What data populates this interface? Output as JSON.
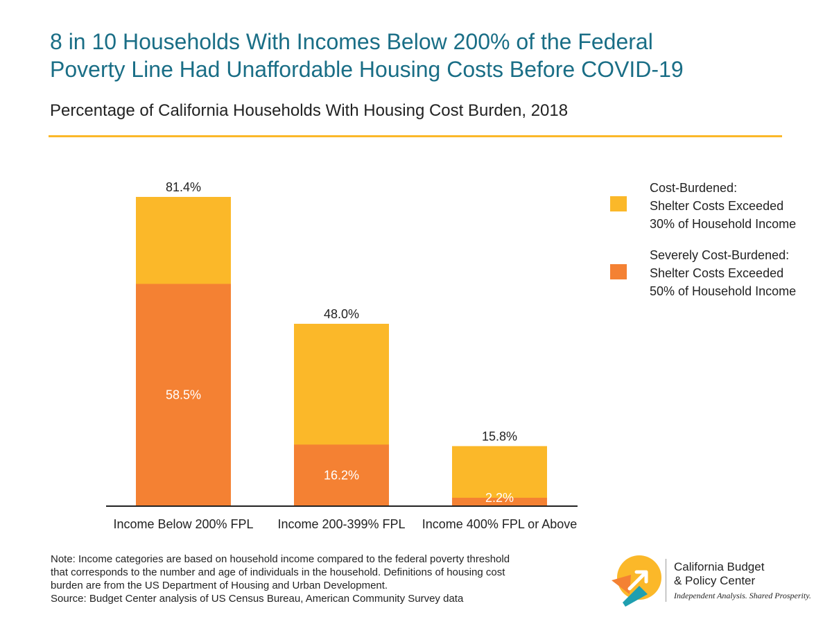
{
  "title_lines": [
    "8 in 10 Households With Incomes Below 200% of the Federal",
    "Poverty Line Had Unaffordable Housing Costs Before COVID-19"
  ],
  "subtitle": "Percentage of California Households With Housing Cost Burden, 2018",
  "colors": {
    "title": "#1a6e86",
    "cost_burdened": "#fbb829",
    "severely_cost_burdened": "#f48133",
    "rule": "#fbb829"
  },
  "chart_data": {
    "type": "bar",
    "stacked": true,
    "title": "8 in 10 Households With Incomes Below 200% of the Federal Poverty Line Had Unaffordable Housing Costs Before COVID-19",
    "subtitle": "Percentage of California Households With Housing Cost Burden, 2018",
    "categories": [
      "Income Below 200% FPL",
      "Income 200-399% FPL",
      "Income 400% FPL or Above"
    ],
    "totals": [
      81.4,
      48.0,
      15.8
    ],
    "total_labels": [
      "81.4%",
      "48.0%",
      "15.8%"
    ],
    "series": [
      {
        "name": "Severely Cost-Burdened: Shelter Costs Exceeded 50% of Household Income",
        "values": [
          58.5,
          16.2,
          2.2
        ],
        "labels": [
          "58.5%",
          "16.2%",
          "2.2%"
        ],
        "color": "#f48133"
      },
      {
        "name": "Cost-Burdened: Shelter Costs Exceeded 30% of Household Income",
        "values": [
          22.9,
          31.8,
          13.6
        ],
        "color": "#fbb829"
      }
    ],
    "ylim": [
      0,
      81.4
    ],
    "grid": false,
    "legend_position": "right"
  },
  "legend": [
    {
      "lines": [
        "Cost-Burdened:",
        "Shelter Costs Exceeded",
        "30% of Household Income"
      ],
      "color": "#fbb829",
      "icon": "orange-yellow-square"
    },
    {
      "lines": [
        "Severely Cost-Burdened:",
        "Shelter Costs Exceeded",
        "50% of Household Income"
      ],
      "color": "#f48133",
      "icon": "orange-square"
    }
  ],
  "note_lines": [
    "Note: Income categories are based on household income compared to the federal poverty threshold",
    "that corresponds to the number and age of individuals in the household. Definitions of housing cost",
    "burden are from the US Department of Housing and Urban Development.",
    "Source: Budget Center analysis of US Census Bureau, American Community Survey data"
  ],
  "logo": {
    "name_lines": [
      "California Budget",
      "& Policy Center"
    ],
    "tagline": "Independent Analysis. Shared Prosperity.",
    "icon": "budget-center-logo-icon"
  }
}
